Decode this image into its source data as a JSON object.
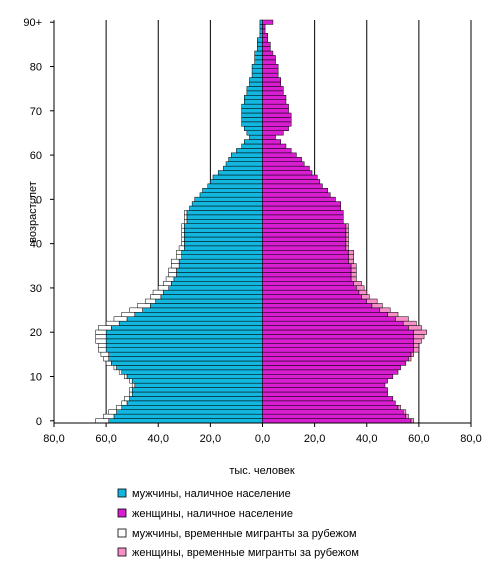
{
  "chart_data": {
    "type": "bar",
    "orientation": "horizontal-population-pyramid",
    "xlabel": "тыс. человек",
    "ylabel": "возраст, лет",
    "xlim": [
      -80,
      80
    ],
    "ylim": [
      0,
      91
    ],
    "x_ticks": [
      -80,
      -60,
      -40,
      -20,
      0,
      20,
      40,
      60,
      80
    ],
    "x_tick_labels": [
      "80,0",
      "60,0",
      "40,0",
      "20,0",
      "0,0",
      "20,0",
      "40,0",
      "60,0",
      "80,0"
    ],
    "x_tick_colors": [
      "#d02020",
      "#d02020",
      "#d02020",
      "#d02020",
      "#000000",
      "#000000",
      "#000000",
      "#000000",
      "#000000"
    ],
    "y_ticks": [
      0,
      10,
      20,
      30,
      40,
      50,
      60,
      70,
      80,
      90
    ],
    "y_tick_labels": [
      "0",
      "10",
      "20",
      "30",
      "40",
      "50",
      "60",
      "70",
      "80",
      "90+"
    ],
    "grid": "vertical",
    "legend_position": "bottom",
    "ages": [
      0,
      1,
      2,
      3,
      4,
      5,
      6,
      7,
      8,
      9,
      10,
      11,
      12,
      13,
      14,
      15,
      16,
      17,
      18,
      19,
      20,
      21,
      22,
      23,
      24,
      25,
      26,
      27,
      28,
      29,
      30,
      31,
      32,
      33,
      34,
      35,
      36,
      37,
      38,
      39,
      40,
      41,
      42,
      43,
      44,
      45,
      46,
      47,
      48,
      49,
      50,
      51,
      52,
      53,
      54,
      55,
      56,
      57,
      58,
      59,
      60,
      61,
      62,
      63,
      64,
      65,
      66,
      67,
      68,
      69,
      70,
      71,
      72,
      73,
      74,
      75,
      76,
      77,
      78,
      79,
      80,
      81,
      82,
      83,
      84,
      85,
      86,
      87,
      88,
      89,
      90
    ],
    "series": [
      {
        "name": "мужчины, наличное население",
        "side": "left",
        "color": "#13b6de",
        "values": [
          59,
          57,
          56,
          54,
          52,
          51,
          50,
          50,
          49,
          50,
          52,
          54,
          56,
          58,
          59,
          59,
          60,
          60,
          60,
          60,
          60,
          58,
          55,
          52,
          49,
          46,
          43,
          41,
          39,
          38,
          36,
          35,
          34,
          33,
          33,
          32,
          32,
          31,
          31,
          30,
          30,
          30,
          30,
          30,
          30,
          29,
          29,
          29,
          28,
          27,
          26,
          24,
          23,
          21,
          20,
          19,
          17,
          15,
          14,
          13,
          12,
          10,
          8,
          7,
          5,
          6,
          7,
          8,
          8,
          8,
          8,
          8,
          7,
          7,
          6,
          6,
          5,
          5,
          4,
          4,
          4,
          3,
          3,
          3,
          2,
          2,
          2,
          1,
          1,
          1,
          1
        ]
      },
      {
        "name": "женщины, наличное население",
        "side": "right",
        "color": "#d81ed0",
        "values": [
          57,
          55,
          54,
          52,
          51,
          50,
          48,
          48,
          47,
          48,
          50,
          52,
          53,
          55,
          56,
          57,
          58,
          58,
          58,
          58,
          58,
          56,
          54,
          51,
          48,
          45,
          42,
          40,
          38,
          37,
          36,
          35,
          34,
          34,
          34,
          34,
          33,
          33,
          33,
          32,
          32,
          32,
          32,
          32,
          32,
          31,
          31,
          31,
          30,
          30,
          28,
          26,
          25,
          23,
          22,
          21,
          19,
          18,
          16,
          15,
          13,
          11,
          9,
          7,
          5,
          8,
          10,
          11,
          11,
          11,
          10,
          10,
          9,
          9,
          8,
          8,
          7,
          7,
          6,
          6,
          6,
          5,
          5,
          4,
          3,
          3,
          2,
          2,
          1,
          1,
          4
        ]
      },
      {
        "name": "мужчины, временные мигранты за рубежом",
        "side": "left",
        "color": "#ffffff",
        "values": [
          5,
          4,
          3,
          2,
          2,
          2,
          1,
          1,
          1,
          1,
          1,
          1,
          1,
          2,
          2,
          3,
          3,
          3,
          4,
          4,
          4,
          5,
          5,
          5,
          5,
          5,
          5,
          4,
          4,
          4,
          4,
          3,
          3,
          3,
          3,
          3,
          3,
          2,
          2,
          2,
          1,
          1,
          1,
          1,
          1,
          1,
          1,
          1,
          0,
          0,
          0,
          0,
          0,
          0,
          0,
          0,
          0,
          0,
          0,
          0,
          0,
          0,
          0,
          0,
          0,
          0,
          0,
          0,
          0,
          0,
          0,
          0,
          0,
          0,
          0,
          0,
          0,
          0,
          0,
          0,
          0,
          0,
          0,
          0,
          0,
          0,
          0,
          0,
          0,
          0,
          0
        ]
      },
      {
        "name": "женщины, временные мигранты за рубежом",
        "side": "right",
        "color": "#f890c8",
        "values": [
          1,
          1,
          1,
          1,
          0,
          0,
          0,
          0,
          0,
          0,
          0,
          0,
          0,
          0,
          1,
          1,
          2,
          2,
          3,
          4,
          5,
          5,
          5,
          5,
          4,
          4,
          4,
          4,
          3,
          3,
          3,
          3,
          2,
          2,
          2,
          2,
          2,
          2,
          2,
          1,
          1,
          1,
          1,
          1,
          1,
          0,
          0,
          0,
          0,
          0,
          0,
          0,
          0,
          0,
          0,
          0,
          0,
          0,
          0,
          0,
          0,
          0,
          0,
          0,
          0,
          0,
          0,
          0,
          0,
          0,
          0,
          0,
          0,
          0,
          0,
          0,
          0,
          0,
          0,
          0,
          0,
          0,
          0,
          0,
          0,
          0,
          0,
          0,
          0,
          0,
          0
        ]
      }
    ]
  }
}
